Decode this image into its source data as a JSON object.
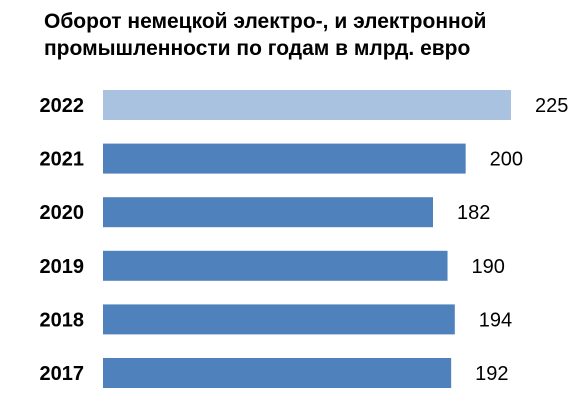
{
  "chart_data": {
    "type": "bar",
    "orientation": "horizontal",
    "title_lines": [
      "Оборот немецкой электро-, и электронной",
      "промышленности по годам в млрд. евро"
    ],
    "categories": [
      "2022",
      "2021",
      "2020",
      "2019",
      "2018",
      "2017"
    ],
    "values": [
      225,
      200,
      182,
      190,
      194,
      192
    ],
    "value_labels": [
      "225",
      "200",
      "182",
      "190",
      "194",
      "192"
    ],
    "bar_colors": [
      "#a9c2e0",
      "#4f81bd",
      "#4f81bd",
      "#4f81bd",
      "#4f81bd",
      "#4f81bd"
    ],
    "xlim": [
      0,
      225
    ],
    "grid": false,
    "legend": "none"
  }
}
